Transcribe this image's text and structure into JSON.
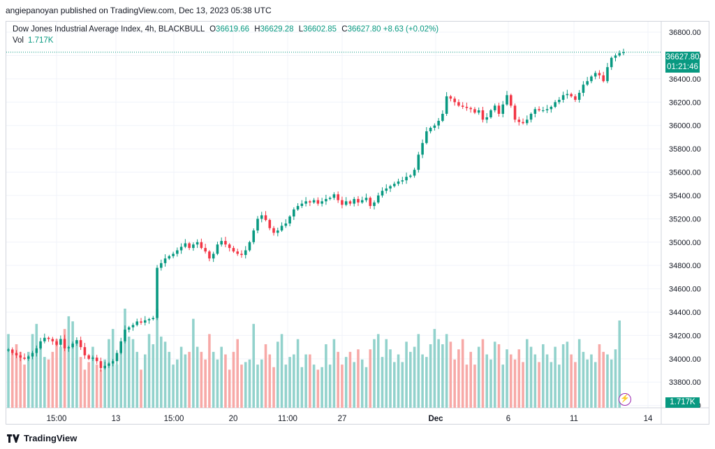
{
  "publisher_line": "angiepanoyan published on TradingView.com, Dec 13, 2023 05:38 UTC",
  "legend": {
    "symbol": "Dow Jones Industrial Average Index, 4h, BLACKBULL",
    "o_key": "O",
    "o": "36619.66",
    "h_key": "H",
    "h": "36629.28",
    "l_key": "L",
    "l": "36602.85",
    "c_key": "C",
    "c": "36627.80",
    "change": "+8.63 (+0.02%)",
    "vol_label": "Vol",
    "vol_value": "1.717K"
  },
  "last_price": "36627.80",
  "countdown": "01:21:46",
  "last_volume": "1.717K",
  "footer_brand": "TradingView",
  "colors": {
    "up": "#089981",
    "down": "#f23645",
    "vol_up": "#92d2cc",
    "vol_down": "#f7a9a7",
    "grid": "#f0f3fa",
    "text": "#131722"
  },
  "chart_data": {
    "type": "candlestick",
    "title": "Dow Jones Industrial Average Index, 4h, BLACKBULL",
    "y_ticks": [
      "36800.00",
      "36600.00",
      "36400.00",
      "36200.00",
      "36000.00",
      "35800.00",
      "35600.00",
      "35400.00",
      "35200.00",
      "35000.00",
      "34800.00",
      "34600.00",
      "34400.00",
      "34200.00",
      "34000.00",
      "33800.00",
      "33600.00"
    ],
    "ylim": [
      33580,
      36890
    ],
    "x_ticks": [
      "15:00",
      "13",
      "15:00",
      "20",
      "11:00",
      "27",
      "Dec",
      "6",
      "11",
      "14"
    ],
    "grid": true,
    "closes": [
      34080,
      34050,
      34030,
      34010,
      34000,
      34020,
      34050,
      34090,
      34150,
      34180,
      34170,
      34150,
      34120,
      34170,
      34090,
      34100,
      34130,
      34160,
      34100,
      34030,
      34000,
      34010,
      33980,
      33920,
      33940,
      33960,
      33980,
      34050,
      34150,
      34250,
      34270,
      34290,
      34320,
      34310,
      34330,
      34340,
      34350,
      34780,
      34820,
      34860,
      34880,
      34900,
      34930,
      34960,
      34990,
      34950,
      34980,
      35000,
      34950,
      34920,
      34860,
      34900,
      34980,
      35010,
      34980,
      34950,
      34920,
      34900,
      34890,
      34930,
      35000,
      35100,
      35200,
      35230,
      35190,
      35120,
      35080,
      35100,
      35140,
      35160,
      35220,
      35280,
      35310,
      35330,
      35350,
      35340,
      35360,
      35330,
      35350,
      35370,
      35380,
      35410,
      35360,
      35320,
      35350,
      35330,
      35370,
      35340,
      35360,
      35380,
      35310,
      35340,
      35400,
      35440,
      35460,
      35480,
      35500,
      35520,
      35530,
      35560,
      35570,
      35620,
      35750,
      35850,
      35950,
      35980,
      36000,
      36040,
      36100,
      36250,
      36230,
      36200,
      36170,
      36160,
      36150,
      36140,
      36110,
      36130,
      36050,
      36070,
      36130,
      36170,
      36100,
      36180,
      36260,
      36170,
      36050,
      36030,
      36020,
      36050,
      36100,
      36140,
      36130,
      36130,
      36140,
      36160,
      36200,
      36220,
      36260,
      36270,
      36250,
      36220,
      36280,
      36350,
      36380,
      36420,
      36450,
      36430,
      36380,
      36500,
      36580,
      36600,
      36620,
      36628
    ],
    "volumes": [
      1.45,
      1.1,
      1.25,
      1.1,
      0.85,
      1.1,
      1.45,
      1.65,
      1.2,
      1.0,
      0.95,
      1.1,
      1.35,
      1.2,
      1.55,
      1.8,
      1.7,
      1.3,
      1.0,
      0.75,
      0.9,
      1.2,
      0.85,
      0.75,
      0.95,
      1.35,
      1.55,
      0.85,
      1.2,
      1.95,
      1.4,
      1.35,
      1.1,
      0.75,
      1.05,
      1.45,
      1.25,
      1.95,
      1.4,
      1.3,
      1.1,
      0.85,
      0.95,
      1.2,
      1.05,
      1.1,
      1.75,
      1.2,
      1.1,
      0.95,
      1.45,
      1.1,
      0.95,
      1.2,
      1.05,
      0.75,
      1.1,
      1.35,
      0.85,
      0.9,
      0.95,
      1.65,
      0.85,
      0.95,
      1.25,
      1.05,
      0.8,
      1.3,
      1.45,
      0.85,
      1.0,
      1.05,
      1.35,
      0.8,
      1.05,
      1.05,
      0.85,
      0.75,
      0.8,
      1.25,
      0.85,
      1.35,
      1.1,
      0.85,
      1.0,
      1.1,
      0.9,
      1.15,
      0.95,
      0.8,
      1.15,
      1.35,
      1.45,
      1.0,
      1.35,
      1.15,
      0.9,
      1.05,
      0.9,
      1.3,
      1.1,
      1.2,
      1.45,
      1.05,
      1.0,
      1.25,
      1.55,
      1.35,
      1.25,
      1.45,
      1.3,
      0.95,
      1.15,
      1.35,
      0.85,
      1.1,
      0.85,
      1.2,
      1.35,
      1.05,
      0.95,
      1.3,
      1.25,
      0.85,
      1.15,
      1.05,
      0.95,
      1.15,
      0.9,
      1.35,
      1.2,
      1.05,
      0.9,
      1.25,
      1.05,
      0.9,
      1.2,
      0.85,
      1.25,
      1.3,
      1.05,
      0.9,
      1.35,
      1.1,
      0.95,
      1.05,
      0.9,
      1.25,
      1.1,
      1.05,
      0.95,
      1.15,
      1.717
    ]
  }
}
